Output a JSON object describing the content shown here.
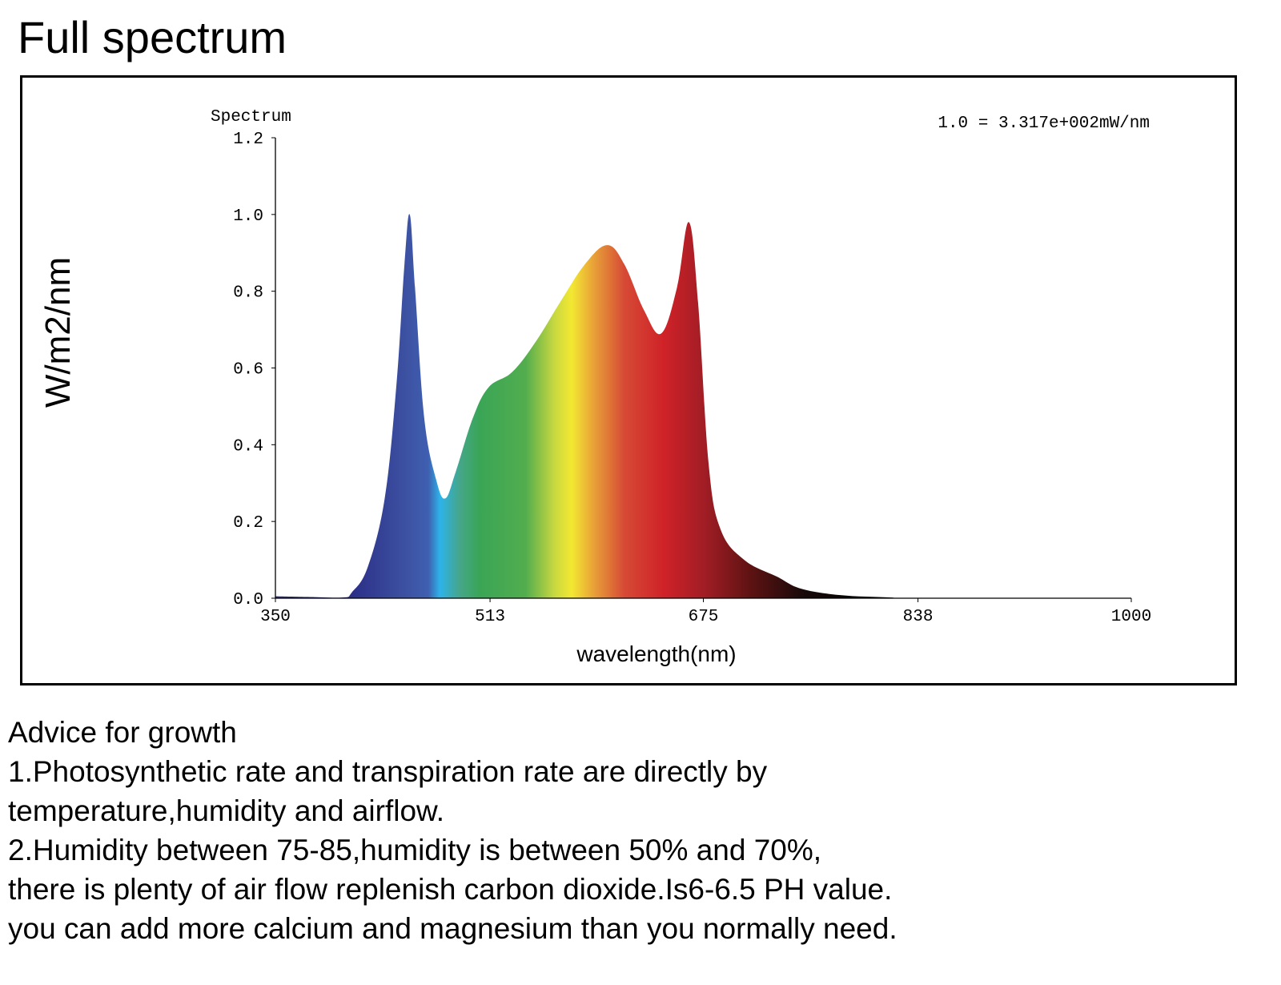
{
  "chart_data": {
    "type": "area",
    "title": "Full spectrum",
    "subtitle": "Spectrum",
    "annotation": "1.0 = 3.317e+002mW/nm",
    "xlabel": "wavelength(nm)",
    "ylabel": "W/m2/nm",
    "xlim": [
      350,
      1000
    ],
    "ylim": [
      0,
      1.2
    ],
    "xticks": [
      "350",
      "513",
      "675",
      "838",
      "1000"
    ],
    "yticks": [
      "0.0",
      "0.2",
      "0.4",
      "0.6",
      "0.8",
      "1.0",
      "1.2"
    ],
    "grid": false,
    "x": [
      350,
      380,
      402,
      408,
      420,
      433,
      442,
      448,
      452,
      456,
      463,
      472,
      479,
      487,
      500,
      512,
      530,
      548,
      566,
      585,
      602,
      615,
      630,
      643,
      655,
      664,
      671,
      679,
      688,
      706,
      731,
      749,
      779,
      816,
      840,
      1000
    ],
    "y": [
      0.005,
      0.003,
      0.002,
      0.015,
      0.08,
      0.26,
      0.56,
      0.87,
      1.0,
      0.81,
      0.47,
      0.31,
      0.26,
      0.33,
      0.47,
      0.55,
      0.59,
      0.67,
      0.77,
      0.87,
      0.92,
      0.87,
      0.75,
      0.69,
      0.81,
      0.98,
      0.77,
      0.35,
      0.18,
      0.1,
      0.056,
      0.025,
      0.008,
      0.002,
      0,
      0
    ],
    "fill_gradient": [
      {
        "nm": 405,
        "color": "#2a2d85"
      },
      {
        "nm": 450,
        "color": "#3d52a3"
      },
      {
        "nm": 466,
        "color": "#3f5fb0"
      },
      {
        "nm": 475,
        "color": "#2db3ea"
      },
      {
        "nm": 490,
        "color": "#45a68a"
      },
      {
        "nm": 505,
        "color": "#3aa556"
      },
      {
        "nm": 540,
        "color": "#52ad4e"
      },
      {
        "nm": 562,
        "color": "#c8d840"
      },
      {
        "nm": 575,
        "color": "#f3e832"
      },
      {
        "nm": 592,
        "color": "#e8a038"
      },
      {
        "nm": 615,
        "color": "#d64a35"
      },
      {
        "nm": 645,
        "color": "#cf2228"
      },
      {
        "nm": 676,
        "color": "#a11d25"
      },
      {
        "nm": 712,
        "color": "#5c1212"
      },
      {
        "nm": 750,
        "color": "#1a0a0a"
      },
      {
        "nm": 800,
        "color": "#000000"
      }
    ]
  },
  "advice": {
    "heading": "Advice for growth",
    "lines": [
      "1.Photosynthetic rate and transpiration rate are directly by",
      "temperature,humidity and airflow.",
      "2.Humidity between 75-85,humidity is between 50% and 70%,",
      "there is plenty of air flow replenish carbon dioxide.Is6-6.5 PH value.",
      "you can add more calcium and magnesium than you normally need."
    ]
  }
}
